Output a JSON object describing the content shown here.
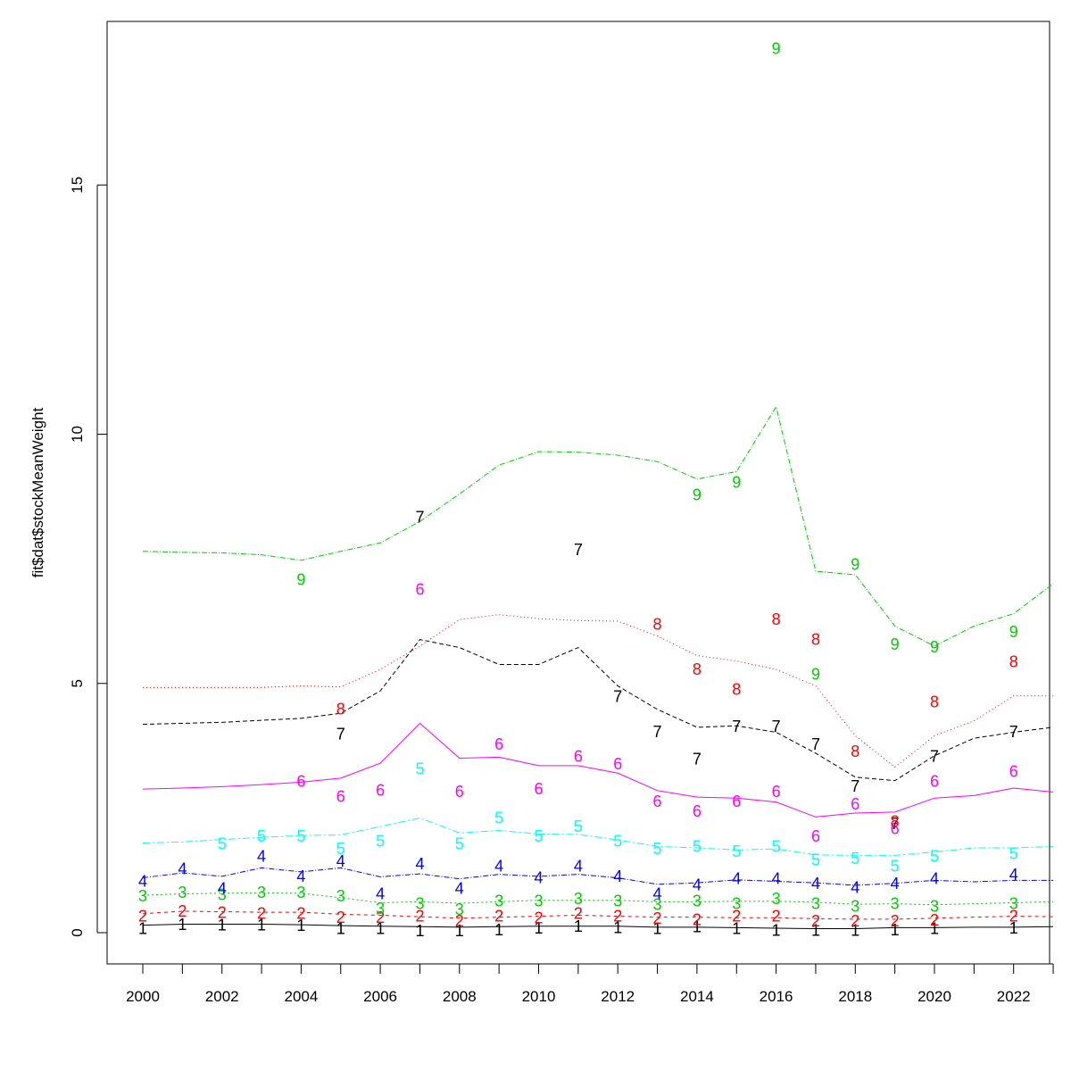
{
  "chart_data": {
    "type": "line",
    "ylabel": "fit$dat$stockMeanWeight",
    "xlabel": "",
    "xlim": [
      2000,
      2023
    ],
    "ylim": [
      0,
      18
    ],
    "x_ticks": [
      2000,
      2002,
      2004,
      2006,
      2008,
      2010,
      2012,
      2014,
      2016,
      2018,
      2020,
      2022
    ],
    "y_ticks": [
      0,
      5,
      10,
      15
    ],
    "years": [
      2000,
      2001,
      2002,
      2003,
      2004,
      2005,
      2006,
      2007,
      2008,
      2009,
      2010,
      2011,
      2012,
      2013,
      2014,
      2015,
      2016,
      2017,
      2018,
      2019,
      2020,
      2021,
      2022,
      2023
    ],
    "series": [
      {
        "label": "1",
        "color": "#000000",
        "dash": "",
        "line": [
          0.15,
          0.17,
          0.17,
          0.17,
          0.16,
          0.14,
          0.13,
          0.12,
          0.11,
          0.12,
          0.13,
          0.13,
          0.13,
          0.11,
          0.11,
          0.1,
          0.09,
          0.08,
          0.08,
          0.1,
          0.1,
          0.11,
          0.11,
          0.12
        ],
        "points": [
          0.1,
          0.18,
          0.17,
          0.17,
          0.16,
          0.1,
          0.1,
          0.05,
          0.05,
          0.07,
          0.11,
          0.14,
          0.12,
          0.1,
          0.13,
          0.1,
          0.06,
          0.06,
          0.06,
          0.07,
          0.1,
          null,
          0.11,
          null
        ]
      },
      {
        "label": "2",
        "color": "#ff0000",
        "dash": "4,4",
        "line": [
          0.38,
          0.43,
          0.42,
          0.41,
          0.41,
          0.37,
          0.35,
          0.32,
          0.29,
          0.31,
          0.33,
          0.35,
          0.33,
          0.31,
          0.31,
          0.3,
          0.3,
          0.28,
          0.27,
          0.27,
          0.29,
          0.31,
          0.33,
          0.32
        ],
        "points": [
          0.35,
          0.45,
          0.42,
          0.4,
          0.4,
          0.32,
          0.32,
          0.35,
          0.25,
          0.35,
          0.31,
          0.4,
          0.35,
          0.3,
          0.28,
          0.35,
          0.35,
          0.25,
          0.25,
          0.25,
          0.27,
          null,
          0.35,
          null
        ]
      },
      {
        "label": "3",
        "color": "#00cd00",
        "dash": "2,3",
        "line": [
          0.75,
          0.78,
          0.79,
          0.8,
          0.79,
          0.7,
          0.6,
          0.62,
          0.59,
          0.62,
          0.65,
          0.65,
          0.65,
          0.62,
          0.62,
          0.63,
          0.63,
          0.61,
          0.57,
          0.58,
          0.56,
          0.58,
          0.6,
          0.62
        ],
        "points": [
          0.75,
          0.82,
          0.78,
          0.82,
          0.82,
          0.75,
          0.5,
          0.6,
          0.48,
          0.65,
          0.65,
          0.7,
          0.65,
          0.58,
          0.65,
          0.6,
          0.7,
          0.6,
          0.55,
          0.6,
          0.55,
          null,
          0.6,
          null
        ]
      },
      {
        "label": "4",
        "color": "#0000ff",
        "dash": "6,2,1,2",
        "line": [
          1.1,
          1.2,
          1.13,
          1.3,
          1.22,
          1.3,
          1.12,
          1.18,
          1.08,
          1.17,
          1.13,
          1.17,
          1.1,
          0.97,
          1.0,
          1.06,
          1.03,
          1.0,
          0.95,
          0.99,
          1.05,
          1.02,
          1.05,
          1.05
        ],
        "points": [
          1.05,
          1.3,
          0.9,
          1.55,
          1.15,
          1.45,
          0.8,
          1.4,
          0.9,
          1.35,
          1.12,
          1.35,
          1.15,
          0.8,
          0.98,
          1.1,
          1.1,
          1.0,
          0.92,
          1.0,
          1.1,
          null,
          1.18,
          null
        ]
      },
      {
        "label": "5",
        "color": "#00ffff",
        "dash": "8,3,2,3",
        "line": [
          1.8,
          1.82,
          1.87,
          1.91,
          1.95,
          1.96,
          2.13,
          2.3,
          2.0,
          2.05,
          1.98,
          1.97,
          1.86,
          1.73,
          1.7,
          1.66,
          1.68,
          1.56,
          1.55,
          1.55,
          1.62,
          1.7,
          1.7,
          1.73
        ],
        "points": [
          null,
          null,
          1.8,
          1.95,
          1.95,
          1.7,
          1.85,
          3.3,
          1.8,
          2.32,
          1.95,
          2.15,
          1.85,
          1.7,
          1.75,
          1.65,
          1.75,
          1.48,
          1.5,
          1.35,
          1.55,
          null,
          1.6,
          null
        ]
      },
      {
        "label": "6",
        "color": "#ff00ff",
        "dash": "",
        "line": [
          2.88,
          2.9,
          2.93,
          2.97,
          3.02,
          3.1,
          3.4,
          4.2,
          3.5,
          3.52,
          3.35,
          3.35,
          3.2,
          2.85,
          2.72,
          2.7,
          2.62,
          2.32,
          2.4,
          2.42,
          2.7,
          2.75,
          2.9,
          2.82
        ],
        "points": [
          null,
          null,
          null,
          null,
          3.05,
          2.75,
          2.87,
          6.9,
          2.85,
          3.8,
          2.9,
          3.55,
          3.4,
          2.65,
          2.45,
          2.65,
          2.85,
          1.95,
          2.6,
          2.1,
          3.05,
          null,
          3.25,
          null
        ]
      },
      {
        "label": "7",
        "color": "#000000",
        "dash": "5,3",
        "line": [
          4.18,
          4.2,
          4.22,
          4.26,
          4.3,
          4.4,
          4.85,
          5.88,
          5.72,
          5.38,
          5.38,
          5.72,
          4.95,
          4.48,
          4.12,
          4.15,
          4.02,
          3.6,
          3.12,
          3.05,
          3.55,
          3.9,
          4.02,
          4.12
        ],
        "points": [
          null,
          null,
          null,
          null,
          null,
          4.0,
          null,
          8.35,
          null,
          null,
          null,
          7.7,
          4.75,
          4.05,
          3.5,
          4.15,
          4.15,
          3.8,
          2.95,
          2.2,
          3.55,
          null,
          4.05,
          null
        ]
      },
      {
        "label": "8",
        "color": "#ff0000",
        "dash": "1,3",
        "line": [
          4.92,
          4.92,
          4.92,
          4.92,
          4.95,
          4.93,
          5.28,
          5.75,
          6.28,
          6.38,
          6.3,
          6.26,
          6.25,
          5.95,
          5.56,
          5.45,
          5.28,
          4.95,
          3.95,
          3.32,
          3.95,
          4.25,
          4.75,
          4.75
        ],
        "points": [
          null,
          null,
          null,
          null,
          null,
          4.5,
          null,
          null,
          null,
          null,
          null,
          null,
          null,
          6.2,
          5.3,
          4.9,
          6.3,
          5.9,
          3.65,
          2.25,
          4.65,
          null,
          5.45,
          null
        ]
      },
      {
        "label": "9",
        "color": "#00cd00",
        "dash": "6,2,1,2",
        "line": [
          7.65,
          7.63,
          7.62,
          7.58,
          7.47,
          7.65,
          7.82,
          8.25,
          8.8,
          9.38,
          9.65,
          9.64,
          9.58,
          9.45,
          9.1,
          9.25,
          10.55,
          7.25,
          7.18,
          6.15,
          5.75,
          6.15,
          6.4,
          7.0
        ],
        "points": [
          null,
          null,
          null,
          null,
          7.1,
          null,
          null,
          null,
          null,
          null,
          null,
          null,
          null,
          null,
          8.8,
          9.05,
          17.75,
          5.2,
          7.4,
          5.8,
          5.75,
          null,
          6.05,
          null
        ]
      }
    ]
  }
}
